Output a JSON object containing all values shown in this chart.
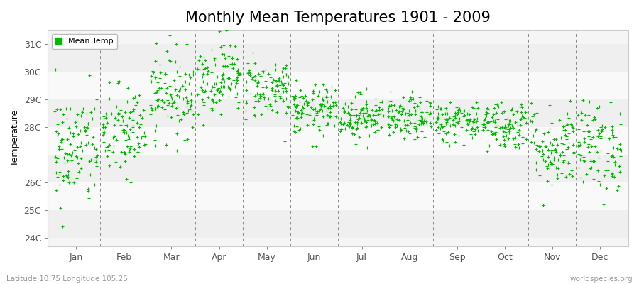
{
  "title": "Monthly Mean Temperatures 1901 - 2009",
  "ylabel": "Temperature",
  "xlabel_labels": [
    "Jan",
    "Feb",
    "Mar",
    "Apr",
    "May",
    "Jun",
    "Jul",
    "Aug",
    "Sep",
    "Oct",
    "Nov",
    "Dec"
  ],
  "ytick_labels": [
    "24C",
    "25C",
    "26C",
    "28C",
    "29C",
    "30C",
    "31C"
  ],
  "ytick_values": [
    24,
    25,
    26,
    28,
    29,
    30,
    31
  ],
  "ylim": [
    23.7,
    31.5
  ],
  "xlim": [
    -0.6,
    11.6
  ],
  "dot_color": "#00bb00",
  "dot_size": 7,
  "background_color": "#ffffff",
  "plot_bg_color": "#f5f5f5",
  "band_colors": [
    "#efefef",
    "#f9f9f9"
  ],
  "grid_color": "#888888",
  "title_fontsize": 15,
  "axis_fontsize": 9,
  "footer_left": "Latitude 10.75 Longitude 105.25",
  "footer_right": "worldspecies.org",
  "legend_label": "Mean Temp",
  "monthly_means": [
    27.2,
    27.8,
    29.2,
    29.8,
    29.4,
    28.6,
    28.4,
    28.3,
    28.2,
    28.1,
    27.3,
    27.3
  ],
  "monthly_stds": [
    1.05,
    0.85,
    0.75,
    0.65,
    0.55,
    0.45,
    0.4,
    0.38,
    0.38,
    0.45,
    0.75,
    0.8
  ],
  "n_years": 109,
  "random_seed": 42,
  "band_yticks": [
    24,
    25,
    26,
    27,
    28,
    29,
    30,
    31
  ]
}
